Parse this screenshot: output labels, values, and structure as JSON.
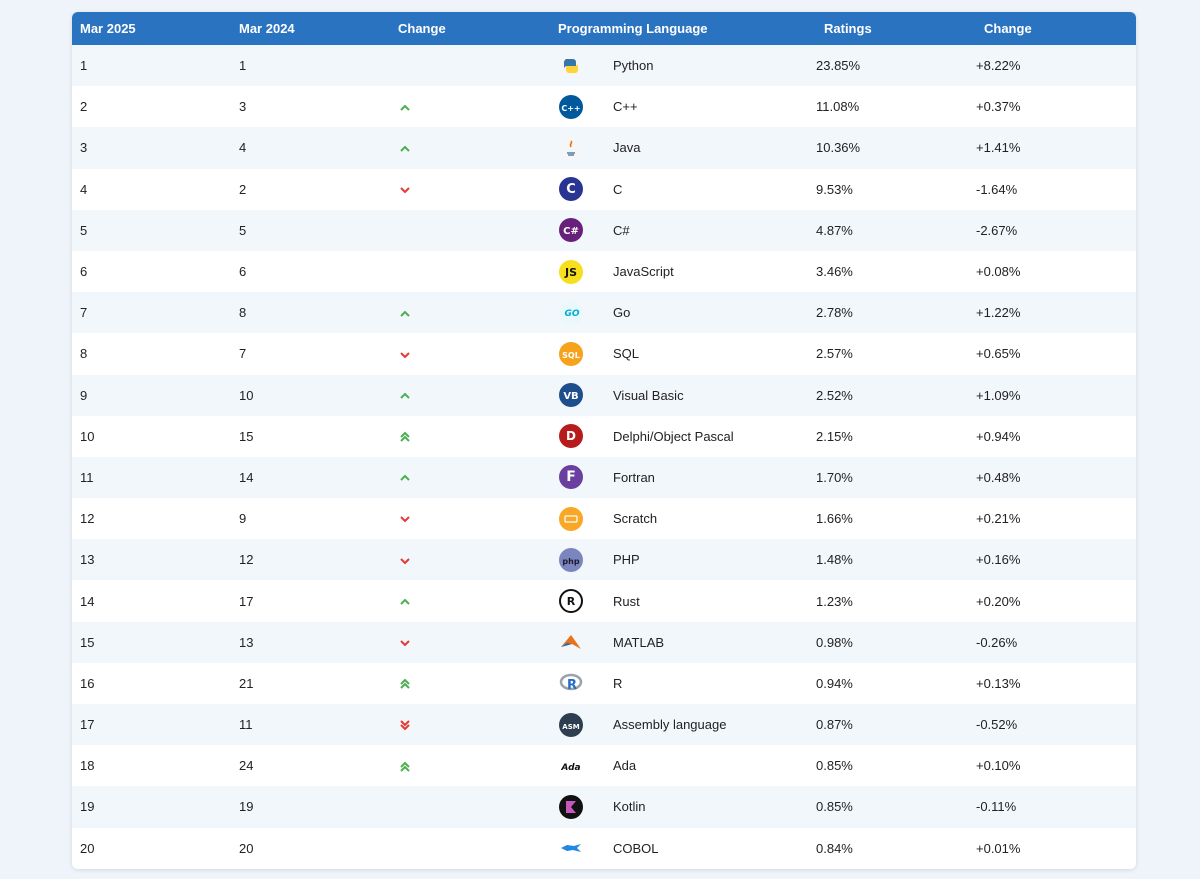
{
  "headers": {
    "mar2025": "Mar 2025",
    "mar2024": "Mar 2024",
    "change": "Change",
    "language": "Programming Language",
    "ratings": "Ratings",
    "change2": "Change"
  },
  "colors": {
    "header": "#2a73c1",
    "up": "#4caf50",
    "down": "#e53935"
  },
  "rows": [
    {
      "now": "1",
      "prev": "1",
      "trend": "none",
      "icon": "python-logo-icon",
      "lang": "Python",
      "rating": "23.85%",
      "delta": "+8.22%"
    },
    {
      "now": "2",
      "prev": "3",
      "trend": "up",
      "icon": "cpp-logo-icon",
      "lang": "C++",
      "rating": "11.08%",
      "delta": "+0.37%"
    },
    {
      "now": "3",
      "prev": "4",
      "trend": "up",
      "icon": "java-logo-icon",
      "lang": "Java",
      "rating": "10.36%",
      "delta": "+1.41%"
    },
    {
      "now": "4",
      "prev": "2",
      "trend": "down",
      "icon": "c-logo-icon",
      "lang": "C",
      "rating": "9.53%",
      "delta": "-1.64%"
    },
    {
      "now": "5",
      "prev": "5",
      "trend": "none",
      "icon": "csharp-logo-icon",
      "lang": "C#",
      "rating": "4.87%",
      "delta": "-2.67%"
    },
    {
      "now": "6",
      "prev": "6",
      "trend": "none",
      "icon": "javascript-logo-icon",
      "lang": "JavaScript",
      "rating": "3.46%",
      "delta": "+0.08%"
    },
    {
      "now": "7",
      "prev": "8",
      "trend": "up",
      "icon": "go-logo-icon",
      "lang": "Go",
      "rating": "2.78%",
      "delta": "+1.22%"
    },
    {
      "now": "8",
      "prev": "7",
      "trend": "down",
      "icon": "sql-logo-icon",
      "lang": "SQL",
      "rating": "2.57%",
      "delta": "+0.65%"
    },
    {
      "now": "9",
      "prev": "10",
      "trend": "up",
      "icon": "visual-basic-logo-icon",
      "lang": "Visual Basic",
      "rating": "2.52%",
      "delta": "+1.09%"
    },
    {
      "now": "10",
      "prev": "15",
      "trend": "up2",
      "icon": "delphi-logo-icon",
      "lang": "Delphi/Object Pascal",
      "rating": "2.15%",
      "delta": "+0.94%"
    },
    {
      "now": "11",
      "prev": "14",
      "trend": "up",
      "icon": "fortran-logo-icon",
      "lang": "Fortran",
      "rating": "1.70%",
      "delta": "+0.48%"
    },
    {
      "now": "12",
      "prev": "9",
      "trend": "down",
      "icon": "scratch-logo-icon",
      "lang": "Scratch",
      "rating": "1.66%",
      "delta": "+0.21%"
    },
    {
      "now": "13",
      "prev": "12",
      "trend": "down",
      "icon": "php-logo-icon",
      "lang": "PHP",
      "rating": "1.48%",
      "delta": "+0.16%"
    },
    {
      "now": "14",
      "prev": "17",
      "trend": "up",
      "icon": "rust-logo-icon",
      "lang": "Rust",
      "rating": "1.23%",
      "delta": "+0.20%"
    },
    {
      "now": "15",
      "prev": "13",
      "trend": "down",
      "icon": "matlab-logo-icon",
      "lang": "MATLAB",
      "rating": "0.98%",
      "delta": "-0.26%"
    },
    {
      "now": "16",
      "prev": "21",
      "trend": "up2",
      "icon": "r-logo-icon",
      "lang": "R",
      "rating": "0.94%",
      "delta": "+0.13%"
    },
    {
      "now": "17",
      "prev": "11",
      "trend": "down2",
      "icon": "assembly-logo-icon",
      "lang": "Assembly language",
      "rating": "0.87%",
      "delta": "-0.52%"
    },
    {
      "now": "18",
      "prev": "24",
      "trend": "up2",
      "icon": "ada-logo-icon",
      "lang": "Ada",
      "rating": "0.85%",
      "delta": "+0.10%"
    },
    {
      "now": "19",
      "prev": "19",
      "trend": "none",
      "icon": "kotlin-logo-icon",
      "lang": "Kotlin",
      "rating": "0.85%",
      "delta": "-0.11%"
    },
    {
      "now": "20",
      "prev": "20",
      "trend": "none",
      "icon": "cobol-logo-icon",
      "lang": "COBOL",
      "rating": "0.84%",
      "delta": "+0.01%"
    }
  ]
}
